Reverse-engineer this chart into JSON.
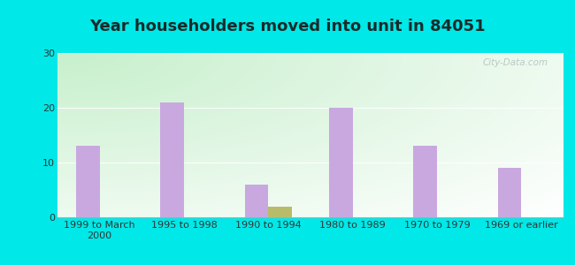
{
  "title": "Year householders moved into unit in 84051",
  "categories": [
    "1999 to March\n2000",
    "1995 to 1998",
    "1990 to 1994",
    "1980 to 1989",
    "1970 to 1979",
    "1969 or earlier"
  ],
  "white_values": [
    13,
    21,
    6,
    20,
    13,
    9
  ],
  "two_or_more_values": [
    0,
    0,
    2,
    0,
    0,
    0
  ],
  "white_color": "#c9a8e0",
  "two_color": "#b8bc6a",
  "ylim": [
    0,
    30
  ],
  "yticks": [
    0,
    10,
    20,
    30
  ],
  "outer_bg": "#00e8e8",
  "bar_width": 0.28,
  "title_fontsize": 13,
  "tick_fontsize": 8,
  "title_color": "#1a2a2a"
}
